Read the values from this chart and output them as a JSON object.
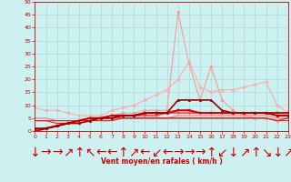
{
  "xlabel": "Vent moyen/en rafales ( km/h )",
  "xlim": [
    0,
    23
  ],
  "ylim": [
    0,
    50
  ],
  "yticks": [
    0,
    5,
    10,
    15,
    20,
    25,
    30,
    35,
    40,
    45,
    50
  ],
  "xticks": [
    0,
    1,
    2,
    3,
    4,
    5,
    6,
    7,
    8,
    9,
    10,
    11,
    12,
    13,
    14,
    15,
    16,
    17,
    18,
    19,
    20,
    21,
    22,
    23
  ],
  "background_color": "#cdf0f0",
  "grid_color": "#aadddd",
  "tick_color": "#cc0000",
  "wind_arrows": [
    "↓",
    "→",
    "→",
    "↗",
    "↑",
    "↖",
    "←",
    "←",
    "↑",
    "↗",
    "←",
    "↙",
    "←",
    "→",
    "→",
    "→",
    "↑",
    "↙",
    "↓",
    "↗",
    "↑",
    "↘",
    "↓",
    "↗"
  ],
  "series": [
    {
      "x": [
        0,
        1,
        2,
        3,
        4,
        5,
        6,
        7,
        8,
        9,
        10,
        11,
        12,
        13,
        14,
        15,
        16,
        17,
        18,
        19,
        20,
        21,
        22,
        23
      ],
      "y": [
        1,
        1,
        2,
        3,
        3,
        4,
        5,
        6,
        7,
        7,
        8,
        8,
        8,
        46,
        26,
        12,
        25,
        12,
        8,
        6,
        5,
        5,
        4,
        5
      ],
      "color": "#ff9999",
      "lw": 0.8,
      "marker": "D",
      "ms": 1.8,
      "zorder": 2
    },
    {
      "x": [
        0,
        1,
        2,
        3,
        4,
        5,
        6,
        7,
        8,
        9,
        10,
        11,
        12,
        13,
        14,
        15,
        16,
        17,
        18,
        19,
        20,
        21,
        22,
        23
      ],
      "y": [
        9,
        8,
        8,
        7,
        6,
        6,
        6,
        8,
        9,
        10,
        12,
        14,
        16,
        20,
        27,
        17,
        15,
        16,
        16,
        17,
        18,
        19,
        10,
        7
      ],
      "color": "#ffaaaa",
      "lw": 0.8,
      "marker": "D",
      "ms": 1.8,
      "zorder": 2
    },
    {
      "x": [
        0,
        1,
        2,
        3,
        4,
        5,
        6,
        7,
        8,
        9,
        10,
        11,
        12,
        13,
        14,
        15,
        16,
        17,
        18,
        19,
        20,
        21,
        22,
        23
      ],
      "y": [
        0,
        1,
        2,
        3,
        4,
        5,
        5,
        6,
        6,
        6,
        7,
        7,
        7,
        8,
        8,
        7,
        7,
        7,
        7,
        7,
        7,
        7,
        7,
        7
      ],
      "color": "#cc0000",
      "lw": 1.5,
      "marker": "s",
      "ms": 1.8,
      "zorder": 4
    },
    {
      "x": [
        0,
        1,
        2,
        3,
        4,
        5,
        6,
        7,
        8,
        9,
        10,
        11,
        12,
        13,
        14,
        15,
        16,
        17,
        18,
        19,
        20,
        21,
        22,
        23
      ],
      "y": [
        1,
        1,
        2,
        3,
        3,
        4,
        5,
        5,
        6,
        6,
        7,
        7,
        7,
        12,
        12,
        12,
        12,
        8,
        7,
        7,
        7,
        7,
        6,
        6
      ],
      "color": "#990000",
      "lw": 1.2,
      "marker": "^",
      "ms": 1.8,
      "zorder": 4
    },
    {
      "x": [
        0,
        1,
        2,
        3,
        4,
        5,
        6,
        7,
        8,
        9,
        10,
        11,
        12,
        13,
        14,
        15,
        16,
        17,
        18,
        19,
        20,
        21,
        22,
        23
      ],
      "y": [
        1,
        1,
        2,
        3,
        4,
        5,
        5,
        5,
        6,
        6,
        6,
        6,
        7,
        7,
        7,
        7,
        7,
        7,
        7,
        7,
        7,
        7,
        6,
        6
      ],
      "color": "#ff4444",
      "lw": 1.2,
      "marker": "v",
      "ms": 1.8,
      "zorder": 3
    },
    {
      "x": [
        0,
        1,
        2,
        3,
        4,
        5,
        6,
        7,
        8,
        9,
        10,
        11,
        12,
        13,
        14,
        15,
        16,
        17,
        18,
        19,
        20,
        21,
        22,
        23
      ],
      "y": [
        5,
        5,
        4,
        4,
        4,
        4,
        5,
        5,
        5,
        5,
        5,
        5,
        5,
        6,
        6,
        6,
        6,
        6,
        6,
        6,
        6,
        6,
        5,
        5
      ],
      "color": "#ff7777",
      "lw": 0.8,
      "marker": null,
      "ms": 1.5,
      "zorder": 2
    },
    {
      "x": [
        0,
        1,
        2,
        3,
        4,
        5,
        6,
        7,
        8,
        9,
        10,
        11,
        12,
        13,
        14,
        15,
        16,
        17,
        18,
        19,
        20,
        21,
        22,
        23
      ],
      "y": [
        4,
        4,
        4,
        4,
        4,
        5,
        5,
        5,
        5,
        5,
        5,
        5,
        5,
        5,
        5,
        5,
        5,
        5,
        5,
        5,
        5,
        5,
        4,
        4
      ],
      "color": "#cc3333",
      "lw": 0.8,
      "marker": null,
      "ms": 1.5,
      "zorder": 2
    },
    {
      "x": [
        0,
        1,
        2,
        3,
        4,
        5,
        6,
        7,
        8,
        9,
        10,
        11,
        12,
        13,
        14,
        15,
        16,
        17,
        18,
        19,
        20,
        21,
        22,
        23
      ],
      "y": [
        4,
        4,
        3,
        3,
        4,
        4,
        4,
        4,
        5,
        5,
        5,
        5,
        5,
        5,
        5,
        5,
        5,
        5,
        5,
        5,
        5,
        5,
        4,
        5
      ],
      "color": "#dd2222",
      "lw": 0.8,
      "marker": null,
      "ms": 1.5,
      "zorder": 2
    }
  ]
}
